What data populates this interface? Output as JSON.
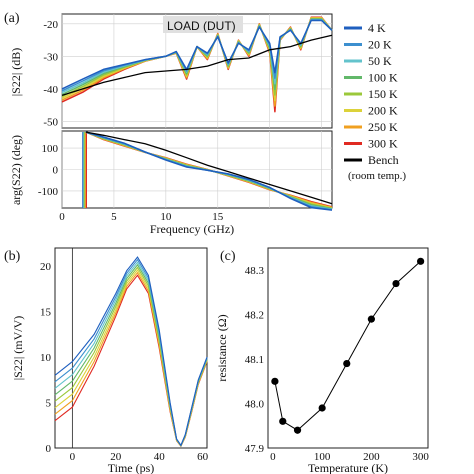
{
  "chart_data": [
    {
      "panel": "(a)",
      "type": "line",
      "annotation": "LOAD (DUT)",
      "xlabel": "Frequency (GHz)",
      "x_ticks": [
        "0",
        "5",
        "10",
        "15"
      ],
      "xlim": [
        0,
        26
      ],
      "legend": {
        "placement": "right",
        "entries": [
          {
            "name": "4 K",
            "color": "#1f5fbf"
          },
          {
            "name": "20 K",
            "color": "#3c8fcf"
          },
          {
            "name": "50 K",
            "color": "#63c3cc"
          },
          {
            "name": "100 K",
            "color": "#62b86a"
          },
          {
            "name": "150 K",
            "color": "#9bc83a"
          },
          {
            "name": "200 K",
            "color": "#dcd23a"
          },
          {
            "name": "250 K",
            "color": "#f0a020"
          },
          {
            "name": "300 K",
            "color": "#e02a22"
          },
          {
            "name": "Bench",
            "name2": "(room temp.)",
            "color": "#000000"
          }
        ]
      },
      "subplots": [
        {
          "ylabel": "|S22| (dB)",
          "ylim": [
            -52,
            -17
          ],
          "y_ticks": [
            "-20",
            "-30",
            "-40",
            "-50"
          ],
          "series": [
            {
              "name": "Bench",
              "color": "#000000",
              "x": [
                0,
                2,
                4,
                6,
                8,
                10,
                12,
                14,
                16,
                18,
                20,
                22,
                24,
                26
              ],
              "y": [
                -42,
                -40,
                -38,
                -36.5,
                -35,
                -34.5,
                -34,
                -33,
                -31,
                -30.5,
                -28,
                -27,
                -25,
                -23.5
              ]
            },
            {
              "name": "4 K",
              "color": "#1f5fbf",
              "x": [
                0,
                2,
                4,
                6,
                8,
                10,
                11,
                12,
                13,
                14,
                15,
                16,
                17,
                18,
                19,
                20,
                20.5,
                21,
                22,
                23,
                24,
                25,
                26
              ],
              "y": [
                -40,
                -37,
                -34,
                -32.5,
                -31,
                -30,
                -28.5,
                -34,
                -27,
                -29,
                -24,
                -32,
                -26,
                -28,
                -21,
                -26,
                -35,
                -24,
                -22,
                -26,
                -19,
                -19,
                -22
              ]
            },
            {
              "name": "300 K",
              "color": "#e02a22",
              "x": [
                0,
                2,
                4,
                6,
                8,
                10,
                11,
                12,
                13,
                14,
                15,
                16,
                17,
                18,
                19,
                20,
                20.5,
                21,
                22,
                23,
                24,
                25,
                26
              ],
              "y": [
                -44,
                -41,
                -37,
                -34,
                -31.5,
                -30,
                -29,
                -37,
                -27,
                -31,
                -23,
                -34,
                -25,
                -30,
                -20,
                -29,
                -47,
                -25,
                -21,
                -28,
                -18,
                -18,
                -22
              ]
            }
          ]
        },
        {
          "ylabel": "arg(S22) (deg)",
          "ylim": [
            -180,
            180
          ],
          "y_ticks": [
            "100",
            "0",
            "-100"
          ],
          "series": [
            {
              "name": "Bench",
              "color": "#000000",
              "x": [
                2.3,
                4,
                6,
                8,
                10,
                12,
                14,
                16,
                18,
                20,
                22,
                24,
                26
              ],
              "y": [
                175,
                160,
                140,
                120,
                90,
                55,
                20,
                -10,
                -40,
                -70,
                -100,
                -130,
                -160
              ]
            },
            {
              "name": "300 K",
              "color": "#e02a22",
              "x": [
                2.3,
                4,
                6,
                8,
                10,
                12,
                14,
                16,
                18,
                20,
                22,
                24,
                26
              ],
              "y": [
                175,
                140,
                110,
                80,
                55,
                25,
                0,
                -30,
                -60,
                -95,
                -120,
                -150,
                -175
              ]
            }
          ]
        }
      ]
    },
    {
      "panel": "(b)",
      "type": "line",
      "xlabel": "Time (ps)",
      "ylabel": "|S22| (mV/V)",
      "x_ticks": [
        "0",
        "20",
        "40",
        "60"
      ],
      "y_ticks": [
        "0",
        "5",
        "10",
        "15",
        "20"
      ],
      "xlim": [
        -8,
        62
      ],
      "ylim": [
        0,
        22
      ],
      "series": [
        {
          "name": "4 K",
          "color": "#1f5fbf",
          "x": [
            -8,
            0,
            10,
            20,
            25,
            30,
            35,
            40,
            45,
            48,
            50,
            52,
            55,
            58,
            62
          ],
          "y": [
            8,
            9.5,
            12.5,
            17,
            19.5,
            21,
            19,
            13,
            5,
            1,
            0.3,
            1.5,
            4.5,
            7.5,
            10
          ]
        },
        {
          "name": "300 K",
          "color": "#e02a22",
          "x": [
            -8,
            0,
            10,
            20,
            25,
            30,
            35,
            40,
            45,
            48,
            50,
            52,
            55,
            58,
            62
          ],
          "y": [
            3,
            4.5,
            9,
            14.5,
            17.5,
            19,
            17,
            11,
            4,
            0.8,
            0.2,
            1.2,
            4,
            7,
            9.5
          ]
        }
      ]
    },
    {
      "panel": "(c)",
      "type": "scatter",
      "xlabel": "Temperature (K)",
      "ylabel": "resistance (Ω)",
      "x_ticks": [
        "0",
        "100",
        "200",
        "300"
      ],
      "y_ticks": [
        "47.9",
        "48.0",
        "48.1",
        "48.2",
        "48.3"
      ],
      "xlim": [
        -10,
        315
      ],
      "ylim": [
        47.9,
        48.35
      ],
      "x": [
        4,
        20,
        50,
        100,
        150,
        200,
        250,
        300
      ],
      "y": [
        48.05,
        47.96,
        47.94,
        47.99,
        48.09,
        48.19,
        48.27,
        48.32
      ]
    }
  ]
}
